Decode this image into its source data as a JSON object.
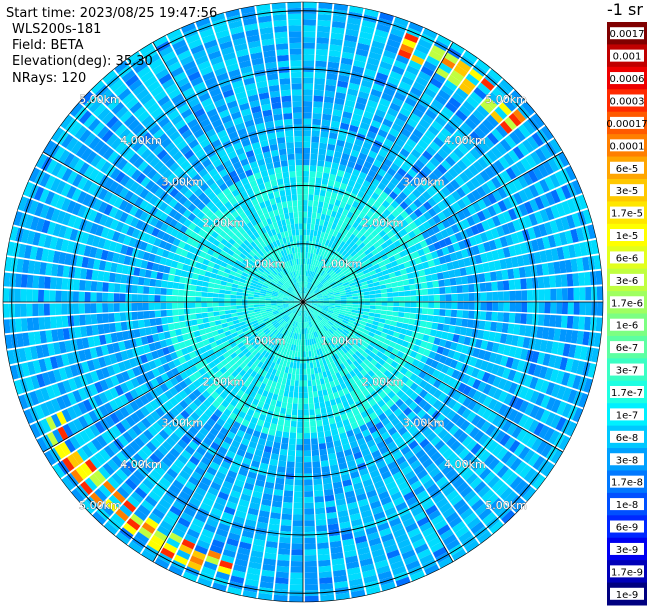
{
  "header": {
    "start_time": "Start time: 2023/08/25 19:47:56",
    "device": "WLS200s-181",
    "field": "Field: BETA",
    "elevation": "Elevation(deg): 35.30",
    "nrays": "NRays: 120"
  },
  "chart_data": {
    "type": "ppi",
    "rings_km": [
      1,
      2,
      3,
      4,
      5
    ],
    "ring_labels": [
      "1.00km",
      "2.00km",
      "3.00km",
      "4.00km",
      "5.00km"
    ],
    "max_range_km": 5.15,
    "nrays": 120,
    "radial_line_angles_deg": [
      0,
      30,
      60,
      90,
      120,
      150,
      180,
      210,
      240,
      270,
      300,
      330
    ],
    "colorbar": {
      "title": "-1 sr",
      "ticks": [
        "0.0017",
        "0.001",
        "0.0006",
        "0.0003",
        "0.00017",
        "0.0001",
        "6e-5",
        "3e-5",
        "1.7e-5",
        "1e-5",
        "6e-6",
        "3e-6",
        "1.7e-6",
        "1e-6",
        "6e-7",
        "3e-7",
        "1.7e-7",
        "1e-7",
        "6e-8",
        "3e-8",
        "1.7e-8",
        "1e-8",
        "6e-9",
        "3e-9",
        "1.7e-9",
        "1e-9"
      ],
      "colors": [
        "#800000",
        "#c00000",
        "#ee0000",
        "#ff2a00",
        "#ff5a00",
        "#ff7f00",
        "#ffa500",
        "#ffc800",
        "#ffe600",
        "#ffff00",
        "#e2ff1e",
        "#c0ff40",
        "#9fff60",
        "#7cff82",
        "#5cffa2",
        "#3affc4",
        "#1effe2",
        "#00f0ff",
        "#00c8ff",
        "#00a0ff",
        "#0078ff",
        "#0050ff",
        "#0028ff",
        "#0000f0",
        "#0000b8",
        "#000080"
      ]
    }
  }
}
